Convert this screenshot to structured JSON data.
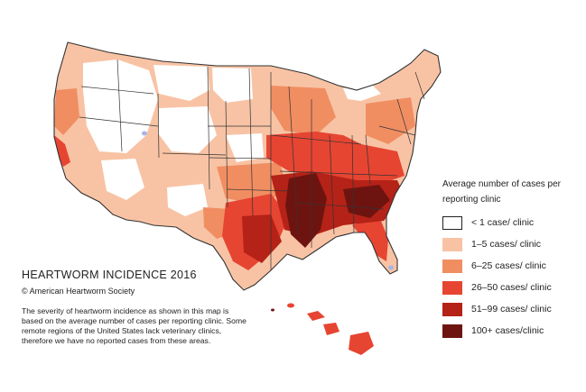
{
  "title": "HEARTWORM INCIDENCE 2016",
  "copyright": "© American Heartworm Society",
  "description": "The severity of heartworm incidence as shown in this map is based on the average number of cases per reporting clinic.  Some remote regions of the United States lack veterinary clinics, therefore we have no reported cases from these areas.",
  "legend": {
    "title": "Average number of cases per reporting clinic",
    "items": [
      {
        "label": "< 1 case/ clinic",
        "color": "#ffffff"
      },
      {
        "label": "1–5 cases/ clinic",
        "color": "#f8c3a4"
      },
      {
        "label": "6–25  cases/ clinic",
        "color": "#f08e62"
      },
      {
        "label": "26–50  cases/ clinic",
        "color": "#e64532"
      },
      {
        "label": "51–99  cases/ clinic",
        "color": "#b52218"
      },
      {
        "label": "100+ cases/clinic",
        "color": "#6e1410"
      }
    ]
  },
  "colors": {
    "land_light": "#f8c3a4",
    "land_mid": "#f08e62",
    "land_high": "#e64532",
    "land_higher": "#b52218",
    "land_highest": "#6e1410",
    "border": "#333333",
    "no_data": "#ffffff",
    "water": "#a9b4e6"
  }
}
